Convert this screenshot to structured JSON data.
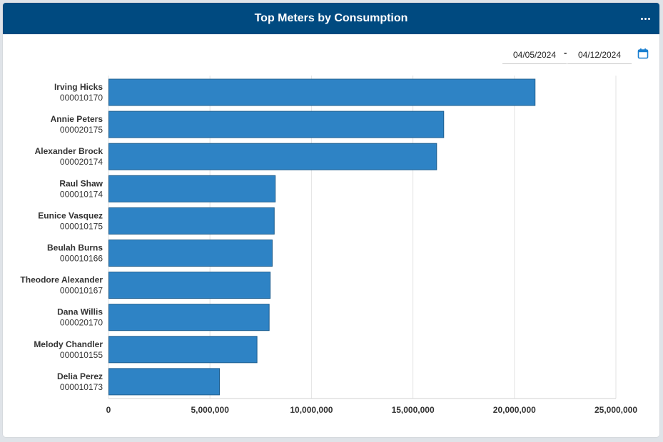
{
  "header": {
    "title": "Top Meters by Consumption",
    "menu_icon": "more-horizontal-icon"
  },
  "filters": {
    "start_date": "04/05/2024",
    "separator": "-",
    "end_date": "04/12/2024",
    "calendar_icon": "calendar-icon"
  },
  "colors": {
    "header_bg": "#004a80",
    "bar_fill": "#2e83c5",
    "bar_stroke": "#1f5f8f",
    "calendar": "#1a7fd0"
  },
  "chart_data": {
    "type": "bar",
    "orientation": "horizontal",
    "categories": [
      {
        "name": "Irving Hicks",
        "id": "000010170"
      },
      {
        "name": "Annie Peters",
        "id": "000020175"
      },
      {
        "name": "Alexander Brock",
        "id": "000020174"
      },
      {
        "name": "Raul Shaw",
        "id": "000010174"
      },
      {
        "name": "Eunice Vasquez",
        "id": "000010175"
      },
      {
        "name": "Beulah Burns",
        "id": "000010166"
      },
      {
        "name": "Theodore Alexander",
        "id": "000010167"
      },
      {
        "name": "Dana Willis",
        "id": "000020170"
      },
      {
        "name": "Melody Chandler",
        "id": "000010155"
      },
      {
        "name": "Delia Perez",
        "id": "000010173"
      }
    ],
    "values": [
      21000000,
      16500000,
      16150000,
      8200000,
      8150000,
      8050000,
      7950000,
      7900000,
      7300000,
      5450000
    ],
    "xlim": [
      0,
      25000000
    ],
    "xticks": [
      0,
      5000000,
      10000000,
      15000000,
      20000000,
      25000000
    ],
    "xtick_labels": [
      "0",
      "5,000,000",
      "10,000,000",
      "15,000,000",
      "20,000,000",
      "25,000,000"
    ],
    "grid": true,
    "legend": "none"
  }
}
